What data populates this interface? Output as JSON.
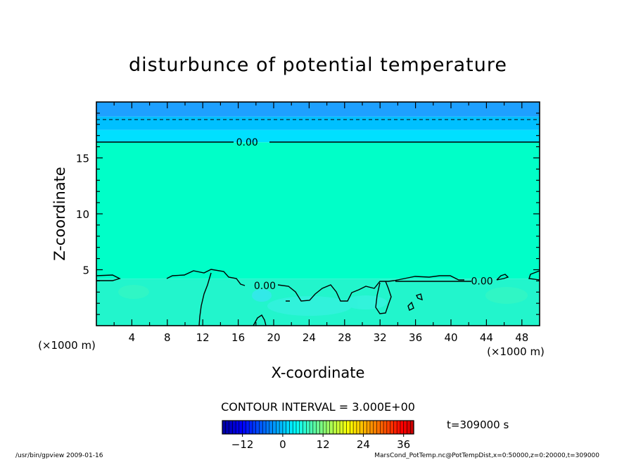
{
  "chart_data": {
    "type": "heatmap",
    "title": "disturbunce of potential temperature",
    "xlabel": "X-coordinate",
    "ylabel": "Z-coordinate",
    "x_unit_left": "(×1000 m)",
    "x_unit_right": "(×1000 m)",
    "xlim": [
      0,
      50
    ],
    "ylim": [
      0,
      20
    ],
    "x_ticks": [
      4,
      8,
      12,
      16,
      20,
      24,
      28,
      32,
      36,
      40,
      44,
      48
    ],
    "y_ticks": [
      5,
      10,
      15
    ],
    "grid": false,
    "contour_interval_text": "CONTOUR INTERVAL = 3.000E+00",
    "contour_labels": [
      {
        "text": "0.00",
        "x": 17,
        "z": 16.4
      },
      {
        "text": "0.00",
        "x": 19,
        "z": 3.6
      },
      {
        "text": "0.00",
        "x": 43.5,
        "z": 4.0
      }
    ],
    "layers": [
      {
        "z_from": 0,
        "z_to": 4.2,
        "value": 0,
        "color": "#22f5cc"
      },
      {
        "z_from": 4.2,
        "z_to": 16.4,
        "value": 0,
        "color": "#00ffc8"
      },
      {
        "z_from": 16.4,
        "z_to": 17.5,
        "value": -3,
        "color": "#00e0ff"
      },
      {
        "z_from": 17.5,
        "z_to": 18.7,
        "value": -6,
        "color": "#00c0ff"
      },
      {
        "z_from": 18.7,
        "z_to": 20,
        "value": -9,
        "color": "#1ea0ff"
      }
    ],
    "colorbar": {
      "range": [
        -18,
        39
      ],
      "tick_values": [
        -12,
        0,
        12,
        24,
        36
      ],
      "tick_labels": [
        "−12",
        "0",
        "12",
        "24",
        "36"
      ]
    },
    "time_label": "t=309000  s",
    "footer_left": "/usr/bin/gpview   2009-01-16",
    "footer_right": "MarsCond_PotTemp.nc@PotTempDist,x=0:50000,z=0:20000,t=309000",
    "colors": {
      "background": "#ffffff",
      "axis": "#000000"
    }
  }
}
